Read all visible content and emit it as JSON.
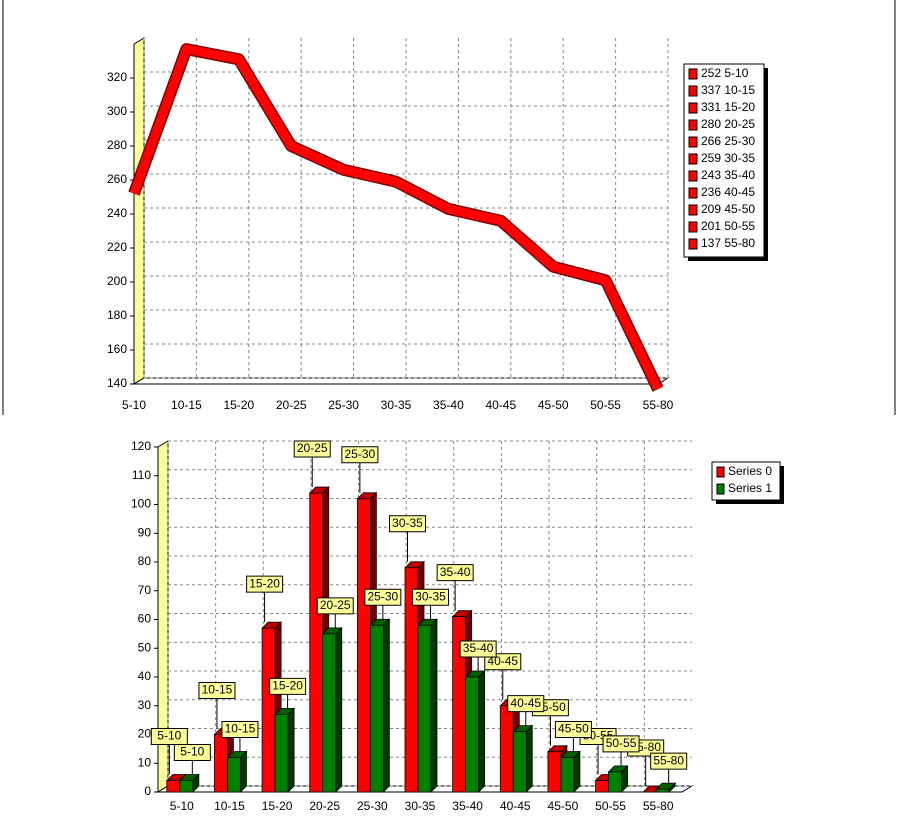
{
  "chart_data": [
    {
      "type": "line",
      "categories": [
        "5-10",
        "10-15",
        "15-20",
        "20-25",
        "25-30",
        "30-35",
        "35-40",
        "40-45",
        "45-50",
        "50-55",
        "55-80"
      ],
      "values": [
        252,
        337,
        331,
        280,
        266,
        259,
        243,
        236,
        209,
        201,
        137
      ],
      "color": "#ff0000",
      "ylim": [
        140,
        340
      ],
      "yticks": [
        140,
        160,
        180,
        200,
        220,
        240,
        260,
        280,
        300,
        320
      ],
      "grid": true,
      "legend": "right"
    },
    {
      "type": "bar",
      "categories": [
        "5-10",
        "10-15",
        "15-20",
        "20-25",
        "25-30",
        "30-35",
        "35-40",
        "40-45",
        "45-50",
        "50-55",
        "55-80"
      ],
      "series": [
        {
          "name": "Series 0",
          "color": "#ff0000",
          "values": [
            4,
            20,
            57,
            104,
            102,
            78,
            61,
            30,
            14,
            4,
            0
          ]
        },
        {
          "name": "Series 1",
          "color": "#008000",
          "values": [
            4,
            12,
            27,
            55,
            58,
            58,
            40,
            21,
            12,
            7,
            1
          ]
        }
      ],
      "ylim": [
        0,
        120
      ],
      "yticks": [
        0,
        10,
        20,
        30,
        40,
        50,
        60,
        70,
        80,
        90,
        100,
        110,
        120
      ],
      "grid": true,
      "legend": "right",
      "data_labels": true
    }
  ]
}
